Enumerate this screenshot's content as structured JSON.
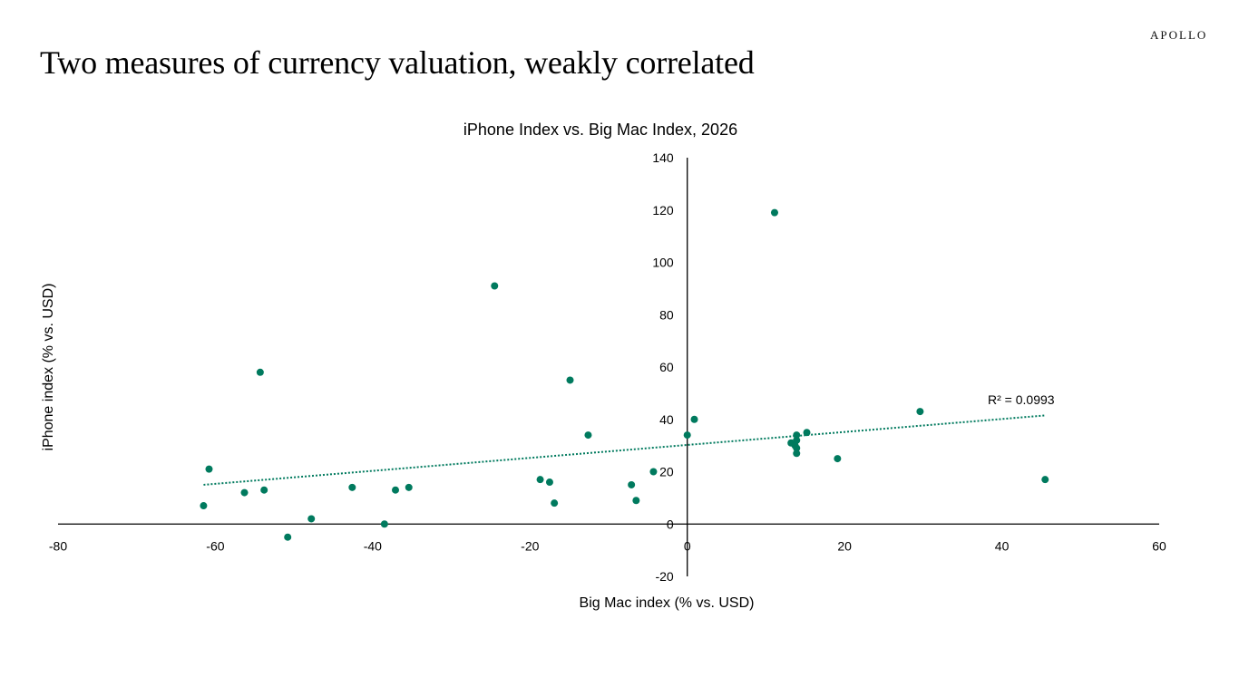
{
  "brand": "APOLLO",
  "headline": "Two measures of currency valuation, weakly correlated",
  "colors": {
    "marker": "#007A5E",
    "trendline": "#007A5E",
    "axis": "#000000"
  },
  "chart_data": {
    "type": "scatter",
    "title": "iPhone Index vs. Big Mac Index, 2026",
    "xlabel": "Big Mac index (% vs. USD)",
    "ylabel": "iPhone index (% vs. USD)",
    "xlim": [
      -80,
      60
    ],
    "ylim": [
      -20,
      140
    ],
    "x_ticks": [
      "-80",
      "-60",
      "-40",
      "-20",
      "0",
      "20",
      "40",
      "60"
    ],
    "y_ticks": [
      "-20",
      "0",
      "20",
      "40",
      "60",
      "80",
      "100",
      "120",
      "140"
    ],
    "grid": false,
    "trendline": {
      "type": "linear",
      "x_range": [
        -61.5,
        45.5
      ],
      "y_range": [
        15,
        41.5
      ],
      "label": "R² = 0.0993"
    },
    "points": [
      {
        "x": -61.5,
        "y": 7
      },
      {
        "x": -60.8,
        "y": 21
      },
      {
        "x": -56.3,
        "y": 12
      },
      {
        "x": -54.3,
        "y": 58
      },
      {
        "x": -53.8,
        "y": 13
      },
      {
        "x": -50.8,
        "y": -5
      },
      {
        "x": -47.8,
        "y": 2
      },
      {
        "x": -42.6,
        "y": 14
      },
      {
        "x": -38.5,
        "y": 0
      },
      {
        "x": -37.1,
        "y": 13
      },
      {
        "x": -35.4,
        "y": 14
      },
      {
        "x": -24.5,
        "y": 91
      },
      {
        "x": -18.7,
        "y": 17
      },
      {
        "x": -17.5,
        "y": 16
      },
      {
        "x": -16.9,
        "y": 8
      },
      {
        "x": -14.9,
        "y": 55
      },
      {
        "x": -12.6,
        "y": 34
      },
      {
        "x": -7.1,
        "y": 15
      },
      {
        "x": -6.5,
        "y": 9
      },
      {
        "x": -4.3,
        "y": 20
      },
      {
        "x": 0.0,
        "y": 34
      },
      {
        "x": 0.9,
        "y": 40
      },
      {
        "x": 11.1,
        "y": 119
      },
      {
        "x": 13.2,
        "y": 31
      },
      {
        "x": 13.7,
        "y": 30
      },
      {
        "x": 13.9,
        "y": 34
      },
      {
        "x": 13.9,
        "y": 32
      },
      {
        "x": 13.9,
        "y": 29
      },
      {
        "x": 13.9,
        "y": 27
      },
      {
        "x": 15.2,
        "y": 35
      },
      {
        "x": 19.1,
        "y": 25
      },
      {
        "x": 29.6,
        "y": 43
      },
      {
        "x": 45.5,
        "y": 17
      }
    ]
  }
}
